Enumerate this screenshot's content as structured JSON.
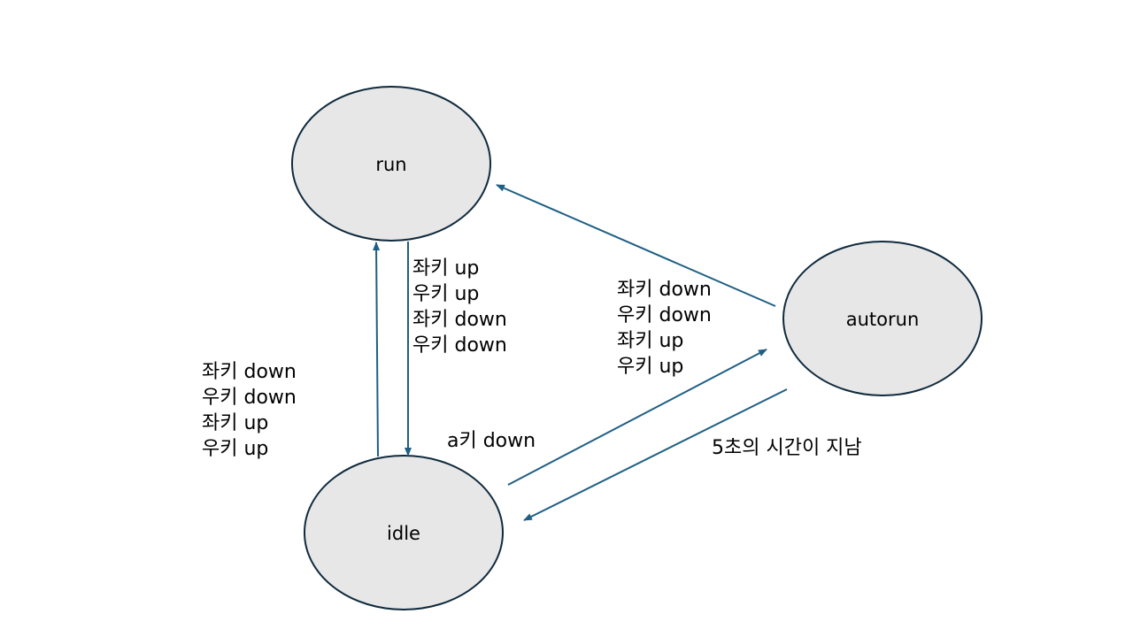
{
  "colors": {
    "node_fill": "#e7e7e7",
    "node_stroke": "#0f2a3d",
    "arrow": "#1f5f84"
  },
  "states": {
    "run": "run",
    "autorun": "autorun",
    "idle": "idle"
  },
  "transitions": {
    "run_to_idle": [
      "좌키 up",
      "우키 up",
      "좌키 down",
      "우키 down"
    ],
    "idle_to_run": [
      "좌키 down",
      "우키 down",
      "좌키 up",
      "우키 up"
    ],
    "autorun_to_run": [
      "좌키 down",
      "우키 down",
      "좌키 up",
      "우키 up"
    ],
    "idle_to_autorun": "a키 down",
    "autorun_to_idle": "5초의 시간이 지남"
  }
}
